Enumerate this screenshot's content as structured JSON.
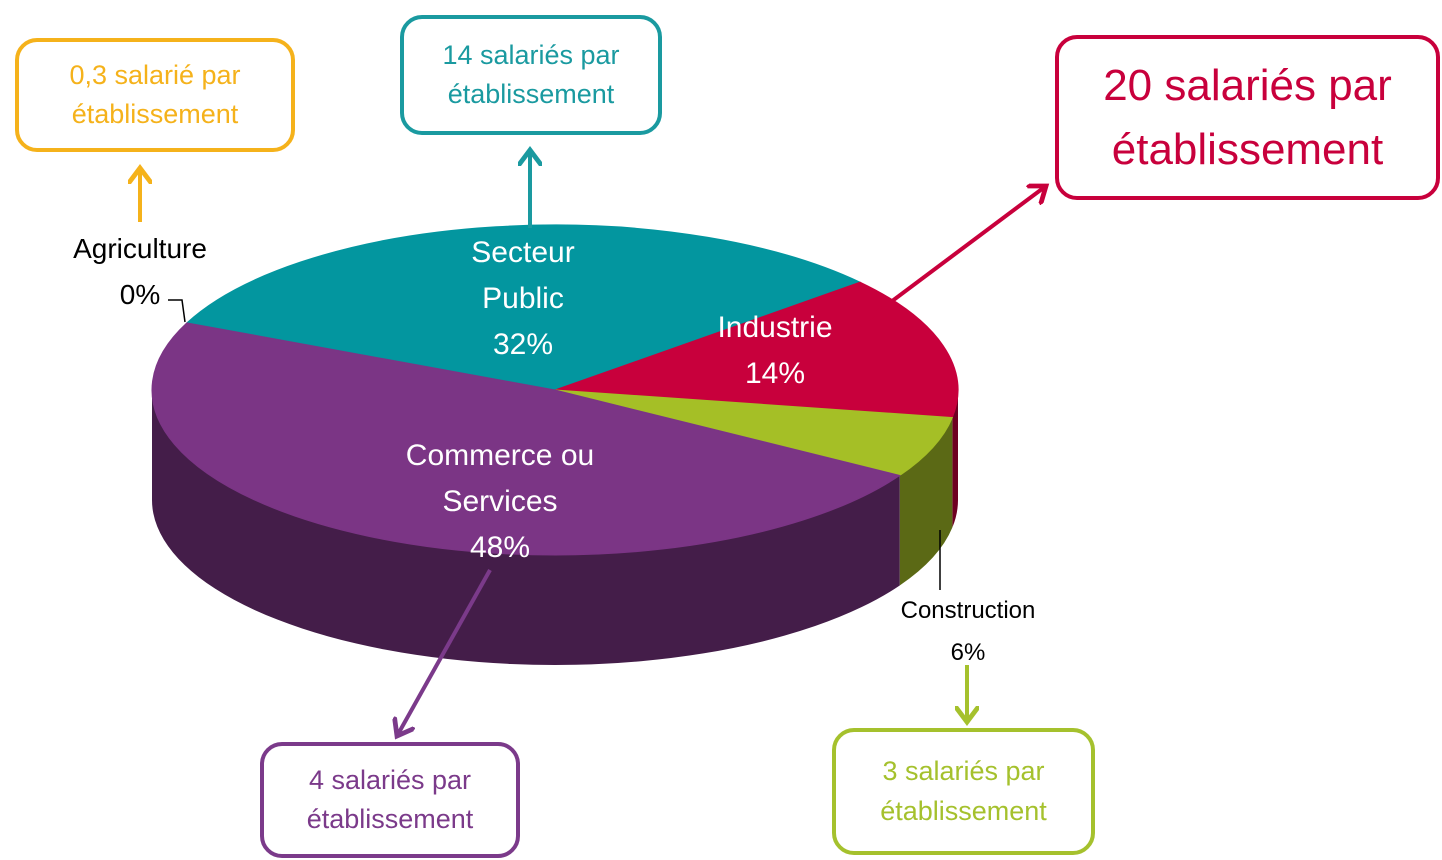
{
  "chart_data": {
    "type": "pie3d",
    "categories": [
      "Agriculture",
      "Secteur Public",
      "Industrie",
      "Construction",
      "Commerce ou Services"
    ],
    "values": [
      0,
      32,
      14,
      6,
      48
    ],
    "value_labels": [
      "0%",
      "32%",
      "14%",
      "6%",
      "48%"
    ],
    "colors": [
      "#f5b21b",
      "#03969f",
      "#c8003c",
      "#a5bf26",
      "#7b3585"
    ],
    "annotations": [
      {
        "text": "0,3 salarié par établissement",
        "color": "#f5b21b"
      },
      {
        "text": "14 salariés par établissement",
        "color": "#1a9aa0"
      },
      {
        "text": "20 salariés par établissement",
        "color": "#c8003c"
      },
      {
        "text": "3 salariés par établissement",
        "color": "#a5c12d"
      },
      {
        "text": "4 salariés par établissement",
        "color": "#7b3a8a"
      }
    ]
  }
}
